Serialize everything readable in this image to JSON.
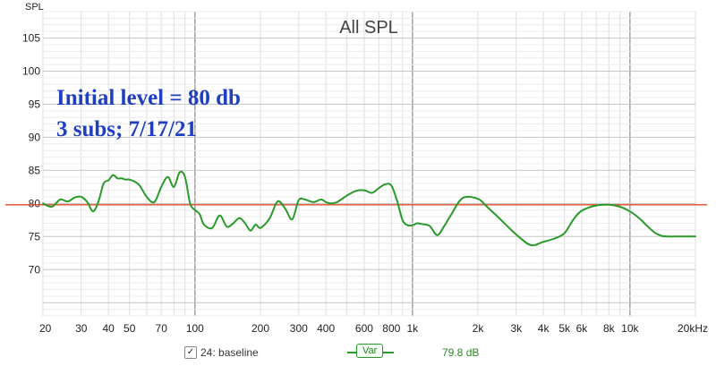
{
  "window": {
    "y_axis_title": "SPL",
    "annotation_line1": "Initial level = 80 db",
    "annotation_line2": "3 subs; 7/17/21"
  },
  "legend": {
    "checked": true,
    "check_glyph": "✓",
    "trace_name": "24: baseline",
    "control_label": "Var",
    "readout": "79.8 dB"
  },
  "colors": {
    "trace": "#2a9a2a",
    "reference": "#e04a2a",
    "annotation": "#1f3fc0"
  },
  "chart_data": {
    "type": "line",
    "title": "All SPL",
    "ylabel": "SPL",
    "xlabel": "",
    "x_scale": "log",
    "xlim": [
      20,
      20000
    ],
    "ylim": [
      63,
      109
    ],
    "grid": true,
    "y_ticks": [
      {
        "value": 105,
        "label": "105"
      },
      {
        "value": 100,
        "label": "100"
      },
      {
        "value": 95,
        "label": "95"
      },
      {
        "value": 90,
        "label": "90"
      },
      {
        "value": 85,
        "label": "85"
      },
      {
        "value": 80,
        "label": "80"
      },
      {
        "value": 75,
        "label": "75"
      },
      {
        "value": 70,
        "label": "70"
      }
    ],
    "x_ticks": [
      {
        "value": 20,
        "label": "20"
      },
      {
        "value": 30,
        "label": "30"
      },
      {
        "value": 40,
        "label": "40"
      },
      {
        "value": 50,
        "label": "50"
      },
      {
        "value": 70,
        "label": "70"
      },
      {
        "value": 100,
        "label": "100"
      },
      {
        "value": 200,
        "label": "200"
      },
      {
        "value": 300,
        "label": "300"
      },
      {
        "value": 400,
        "label": "400"
      },
      {
        "value": 600,
        "label": "600"
      },
      {
        "value": 800,
        "label": "800"
      },
      {
        "value": 1000,
        "label": "1k"
      },
      {
        "value": 2000,
        "label": "2k"
      },
      {
        "value": 3000,
        "label": "3k"
      },
      {
        "value": 4000,
        "label": "4k"
      },
      {
        "value": 5000,
        "label": "5k"
      },
      {
        "value": 6000,
        "label": "6k"
      },
      {
        "value": 8000,
        "label": "8k"
      },
      {
        "value": 10000,
        "label": "10k"
      },
      {
        "value": 20000,
        "label": "20kHz"
      }
    ],
    "series": [
      {
        "name": "24: baseline",
        "x": [
          20,
          22,
          24,
          26,
          28,
          30,
          32,
          34,
          36,
          38,
          40,
          42,
          44,
          46,
          48,
          50,
          55,
          60,
          65,
          70,
          75,
          80,
          85,
          90,
          95,
          100,
          105,
          110,
          120,
          130,
          140,
          150,
          160,
          170,
          180,
          190,
          200,
          220,
          240,
          260,
          280,
          300,
          320,
          350,
          380,
          400,
          420,
          450,
          500,
          550,
          600,
          650,
          700,
          750,
          800,
          850,
          900,
          950,
          1000,
          1050,
          1100,
          1200,
          1300,
          1400,
          1500,
          1700,
          2000,
          2200,
          2500,
          3000,
          3500,
          4000,
          4500,
          5000,
          5500,
          6000,
          7000,
          8000,
          9000,
          10000,
          11000,
          12000,
          13000,
          14000,
          15000,
          16000,
          18000,
          20000
        ],
        "y": [
          80.0,
          79.5,
          80.6,
          80.3,
          80.9,
          81.0,
          80.2,
          78.8,
          80.3,
          83.0,
          83.5,
          84.3,
          83.8,
          83.8,
          83.6,
          83.6,
          82.9,
          81.0,
          80.2,
          82.5,
          84.0,
          82.5,
          84.7,
          84.0,
          80.0,
          79.0,
          78.4,
          76.8,
          76.3,
          78.2,
          76.5,
          77.0,
          77.8,
          77.0,
          75.9,
          76.8,
          76.3,
          77.7,
          80.3,
          79.2,
          77.6,
          80.5,
          80.6,
          80.2,
          80.6,
          80.2,
          80.0,
          80.2,
          81.2,
          81.9,
          82.0,
          81.6,
          82.3,
          82.9,
          82.7,
          80.4,
          77.5,
          76.7,
          76.7,
          77.0,
          76.9,
          76.6,
          75.2,
          76.6,
          78.2,
          80.8,
          80.7,
          79.5,
          77.8,
          75.3,
          73.7,
          74.2,
          74.7,
          75.5,
          77.6,
          78.9,
          79.7,
          79.8,
          79.5,
          78.8,
          77.8,
          76.6,
          75.6,
          75.1,
          75.0,
          75.0,
          75.0,
          75.0
        ]
      },
      {
        "name": "reference",
        "x": [
          20,
          20000
        ],
        "y": [
          79.8,
          79.8
        ]
      }
    ]
  }
}
